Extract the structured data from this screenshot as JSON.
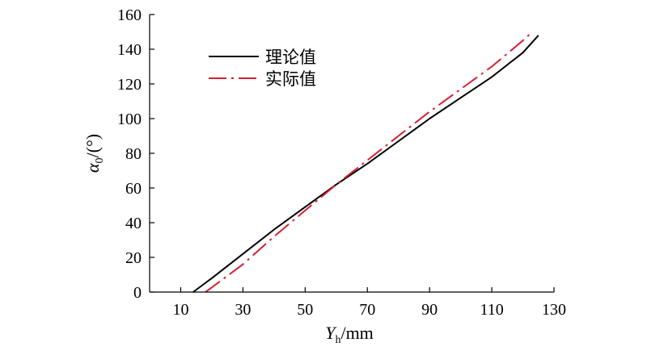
{
  "chart_data": {
    "type": "line",
    "xlabel_main": "Y",
    "xlabel_sub": "h",
    "xlabel_unit": "/mm",
    "ylabel_main": "α",
    "ylabel_sub": "0",
    "ylabel_unit": "/(°)",
    "xlim": [
      0,
      130
    ],
    "ylim": [
      0,
      160
    ],
    "xticks": [
      10,
      30,
      50,
      70,
      90,
      110,
      130
    ],
    "yticks": [
      0,
      20,
      40,
      60,
      80,
      100,
      120,
      140,
      160
    ],
    "grid": false,
    "legend_position": "top-left",
    "series": [
      {
        "name": "理论值",
        "color": "#000000",
        "style": "solid",
        "x": [
          14,
          20,
          30,
          40,
          50,
          60,
          70,
          80,
          90,
          100,
          110,
          120,
          125
        ],
        "y": [
          0,
          8,
          22,
          36,
          49,
          62,
          74,
          87,
          100,
          112,
          124,
          138,
          148
        ]
      },
      {
        "name": "实际值",
        "color": "#d42030",
        "style": "dashdot",
        "x": [
          18,
          30,
          40,
          50,
          60,
          70,
          80,
          90,
          100,
          110,
          120,
          123
        ],
        "y": [
          0,
          16,
          32,
          47,
          62,
          76,
          90,
          104,
          117,
          130,
          145,
          150
        ]
      }
    ]
  }
}
